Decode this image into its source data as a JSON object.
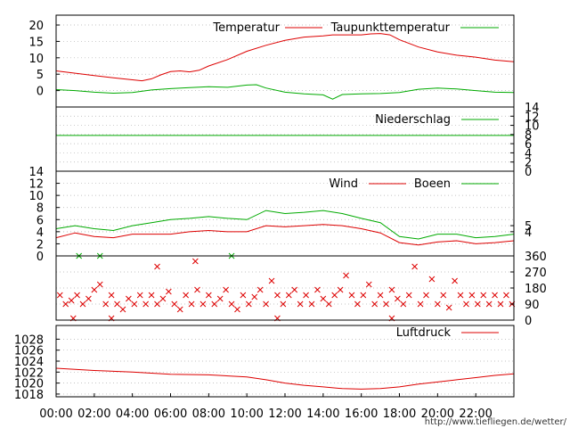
{
  "chart_data": [
    {
      "type": "line",
      "legend_position": "top-right",
      "yticks": [
        0,
        5,
        10,
        15,
        20
      ],
      "ylim": [
        -5,
        23
      ],
      "grid": true,
      "series": [
        {
          "name": "Temperatur",
          "color": "#dd0000",
          "points": [
            [
              0,
              6.0
            ],
            [
              1,
              5.3
            ],
            [
              2,
              4.6
            ],
            [
              3,
              3.9
            ],
            [
              4,
              3.3
            ],
            [
              4.5,
              3.0
            ],
            [
              5,
              3.6
            ],
            [
              5.5,
              4.8
            ],
            [
              6,
              5.8
            ],
            [
              6.5,
              6.0
            ],
            [
              7,
              5.7
            ],
            [
              7.5,
              6.2
            ],
            [
              8,
              7.5
            ],
            [
              9,
              9.5
            ],
            [
              10,
              12.0
            ],
            [
              11,
              13.8
            ],
            [
              12,
              15.3
            ],
            [
              13,
              16.3
            ],
            [
              14,
              16.7
            ],
            [
              14.5,
              17.0
            ],
            [
              15,
              17.0
            ],
            [
              16,
              17.0
            ],
            [
              16.5,
              17.3
            ],
            [
              17,
              17.4
            ],
            [
              17.5,
              17.0
            ],
            [
              18,
              15.5
            ],
            [
              19,
              13.3
            ],
            [
              20,
              11.8
            ],
            [
              21,
              10.8
            ],
            [
              22,
              10.2
            ],
            [
              23,
              9.3
            ],
            [
              24,
              8.8
            ]
          ]
        },
        {
          "name": "Taupunkttemperatur",
          "color": "#00aa00",
          "points": [
            [
              0,
              0.3
            ],
            [
              1,
              0
            ],
            [
              2,
              -0.5
            ],
            [
              3,
              -0.8
            ],
            [
              4,
              -0.6
            ],
            [
              5,
              0.2
            ],
            [
              6,
              0.6
            ],
            [
              7,
              0.9
            ],
            [
              8,
              1.2
            ],
            [
              9,
              1.0
            ],
            [
              10,
              1.7
            ],
            [
              10.5,
              1.8
            ],
            [
              11,
              0.8
            ],
            [
              12,
              -0.5
            ],
            [
              13,
              -1.0
            ],
            [
              14,
              -1.3
            ],
            [
              14.5,
              -2.6
            ],
            [
              15,
              -1.2
            ],
            [
              16,
              -1.0
            ],
            [
              17,
              -0.9
            ],
            [
              18,
              -0.6
            ],
            [
              19,
              0.4
            ],
            [
              20,
              0.8
            ],
            [
              21,
              0.5
            ],
            [
              22,
              0
            ],
            [
              23,
              -0.5
            ],
            [
              24,
              -0.6
            ]
          ]
        }
      ]
    },
    {
      "type": "line",
      "legend_position": "top-right",
      "yticks_right": [
        0,
        2,
        4,
        6,
        8,
        10,
        12,
        14
      ],
      "ylim": [
        0,
        14
      ],
      "grid": true,
      "series": [
        {
          "name": "Niederschlag",
          "color": "#00aa00",
          "points": [
            [
              0,
              7.8
            ],
            [
              24,
              7.8
            ]
          ]
        }
      ]
    },
    {
      "type": "line",
      "legend_position": "top-right",
      "yticks": [
        0,
        2,
        4,
        6,
        8,
        10,
        12,
        14
      ],
      "yticks_right": [
        4,
        5
      ],
      "ylim": [
        0,
        14
      ],
      "grid": true,
      "series": [
        {
          "name": "Wind",
          "color": "#dd0000",
          "points": [
            [
              0,
              3.0
            ],
            [
              1,
              3.8
            ],
            [
              2,
              3.2
            ],
            [
              3,
              3.0
            ],
            [
              4,
              3.6
            ],
            [
              5,
              3.6
            ],
            [
              6,
              3.6
            ],
            [
              7,
              4.0
            ],
            [
              8,
              4.2
            ],
            [
              9,
              4.0
            ],
            [
              10,
              4.0
            ],
            [
              11,
              5.0
            ],
            [
              12,
              4.8
            ],
            [
              13,
              5.0
            ],
            [
              14,
              5.2
            ],
            [
              15,
              5.0
            ],
            [
              16,
              4.5
            ],
            [
              17,
              3.8
            ],
            [
              18,
              2.2
            ],
            [
              19,
              1.8
            ],
            [
              20,
              2.3
            ],
            [
              21,
              2.5
            ],
            [
              22,
              2.0
            ],
            [
              23,
              2.2
            ],
            [
              24,
              2.5
            ]
          ]
        },
        {
          "name": "Boeen",
          "color": "#00aa00",
          "points": [
            [
              0,
              4.5
            ],
            [
              1,
              5.0
            ],
            [
              2,
              4.5
            ],
            [
              3,
              4.2
            ],
            [
              4,
              5.0
            ],
            [
              5,
              5.5
            ],
            [
              6,
              6.0
            ],
            [
              7,
              6.2
            ],
            [
              8,
              6.5
            ],
            [
              9,
              6.2
            ],
            [
              10,
              6.0
            ],
            [
              11,
              7.5
            ],
            [
              12,
              7.0
            ],
            [
              13,
              7.2
            ],
            [
              14,
              7.5
            ],
            [
              15,
              7.0
            ],
            [
              16,
              6.2
            ],
            [
              17,
              5.5
            ],
            [
              18,
              3.2
            ],
            [
              19,
              2.8
            ],
            [
              20,
              3.6
            ],
            [
              21,
              3.6
            ],
            [
              22,
              3.0
            ],
            [
              23,
              3.2
            ],
            [
              24,
              3.6
            ]
          ]
        }
      ]
    },
    {
      "type": "scatter",
      "yticks_right": [
        0,
        90,
        180,
        270,
        360
      ],
      "ylim": [
        0,
        360
      ],
      "grid": true,
      "series": [
        {
          "name": "",
          "color": "#dd0000",
          "points": [
            [
              0.2,
              140
            ],
            [
              0.5,
              90
            ],
            [
              0.8,
              110
            ],
            [
              1.1,
              140
            ],
            [
              1.4,
              90
            ],
            [
              1.7,
              120
            ],
            [
              2.0,
              170
            ],
            [
              2.3,
              200
            ],
            [
              2.6,
              90
            ],
            [
              2.9,
              140
            ],
            [
              3.2,
              90
            ],
            [
              3.5,
              60
            ],
            [
              3.8,
              120
            ],
            [
              4.1,
              90
            ],
            [
              4.4,
              140
            ],
            [
              4.7,
              90
            ],
            [
              5.0,
              140
            ],
            [
              5.3,
              90
            ],
            [
              5.6,
              120
            ],
            [
              5.9,
              160
            ],
            [
              6.2,
              90
            ],
            [
              6.5,
              60
            ],
            [
              6.8,
              140
            ],
            [
              7.1,
              90
            ],
            [
              7.4,
              170
            ],
            [
              7.7,
              90
            ],
            [
              8.0,
              140
            ],
            [
              8.3,
              90
            ],
            [
              8.6,
              120
            ],
            [
              8.9,
              170
            ],
            [
              9.2,
              90
            ],
            [
              9.5,
              60
            ],
            [
              9.8,
              140
            ],
            [
              10.1,
              90
            ],
            [
              10.4,
              130
            ],
            [
              10.7,
              170
            ],
            [
              11.0,
              90
            ],
            [
              11.3,
              220
            ],
            [
              11.6,
              140
            ],
            [
              11.9,
              90
            ],
            [
              12.2,
              140
            ],
            [
              12.5,
              170
            ],
            [
              12.8,
              90
            ],
            [
              13.1,
              140
            ],
            [
              13.4,
              90
            ],
            [
              13.7,
              170
            ],
            [
              14.0,
              120
            ],
            [
              14.3,
              90
            ],
            [
              14.6,
              140
            ],
            [
              14.9,
              170
            ],
            [
              15.2,
              250
            ],
            [
              15.5,
              140
            ],
            [
              15.8,
              90
            ],
            [
              16.1,
              140
            ],
            [
              16.4,
              200
            ],
            [
              16.7,
              90
            ],
            [
              17.0,
              140
            ],
            [
              17.3,
              90
            ],
            [
              17.6,
              170
            ],
            [
              17.9,
              120
            ],
            [
              18.2,
              90
            ],
            [
              18.5,
              140
            ],
            [
              18.8,
              300
            ],
            [
              19.1,
              90
            ],
            [
              19.4,
              140
            ],
            [
              19.7,
              230
            ],
            [
              20.0,
              90
            ],
            [
              20.3,
              140
            ],
            [
              20.6,
              70
            ],
            [
              20.9,
              220
            ],
            [
              21.2,
              140
            ],
            [
              21.5,
              90
            ],
            [
              21.8,
              140
            ],
            [
              22.1,
              90
            ],
            [
              22.4,
              140
            ],
            [
              22.7,
              90
            ],
            [
              23.0,
              140
            ],
            [
              23.3,
              90
            ],
            [
              23.6,
              140
            ],
            [
              23.9,
              90
            ],
            [
              5.3,
              300
            ],
            [
              7.3,
              330
            ],
            [
              0.9,
              10
            ],
            [
              2.9,
              10
            ],
            [
              11.6,
              10
            ],
            [
              17.6,
              10
            ]
          ]
        },
        {
          "name": "",
          "color": "#00aa00",
          "points": [
            [
              1.2,
              360
            ],
            [
              2.3,
              360
            ],
            [
              9.2,
              360
            ]
          ]
        }
      ]
    },
    {
      "type": "line",
      "legend_position": "top-right",
      "yticks": [
        1018,
        1020,
        1022,
        1024,
        1026,
        1028
      ],
      "ylim": [
        1017.5,
        1030.5
      ],
      "grid": true,
      "series": [
        {
          "name": "Luftdruck",
          "color": "#dd0000",
          "points": [
            [
              0,
              1022.7
            ],
            [
              2,
              1022.3
            ],
            [
              4,
              1022.0
            ],
            [
              6,
              1021.6
            ],
            [
              8,
              1021.5
            ],
            [
              10,
              1021.1
            ],
            [
              11,
              1020.6
            ],
            [
              12,
              1020.0
            ],
            [
              13,
              1019.6
            ],
            [
              14,
              1019.3
            ],
            [
              15,
              1019.0
            ],
            [
              16,
              1018.9
            ],
            [
              17,
              1019.0
            ],
            [
              18,
              1019.3
            ],
            [
              19,
              1019.8
            ],
            [
              20,
              1020.2
            ],
            [
              21,
              1020.6
            ],
            [
              22,
              1021.0
            ],
            [
              23,
              1021.4
            ],
            [
              24,
              1021.7
            ]
          ]
        }
      ]
    }
  ],
  "x_axis": {
    "domain": [
      0,
      24
    ],
    "ticks": [
      0,
      2,
      4,
      6,
      8,
      10,
      12,
      14,
      16,
      18,
      20,
      22
    ],
    "tick_labels": [
      "00:00",
      "02:00",
      "04:00",
      "06:00",
      "08:00",
      "10:00",
      "12:00",
      "14:00",
      "16:00",
      "18:00",
      "20:00",
      "22:00"
    ]
  },
  "footer": "http://www.tiefliegen.de/wetter/"
}
